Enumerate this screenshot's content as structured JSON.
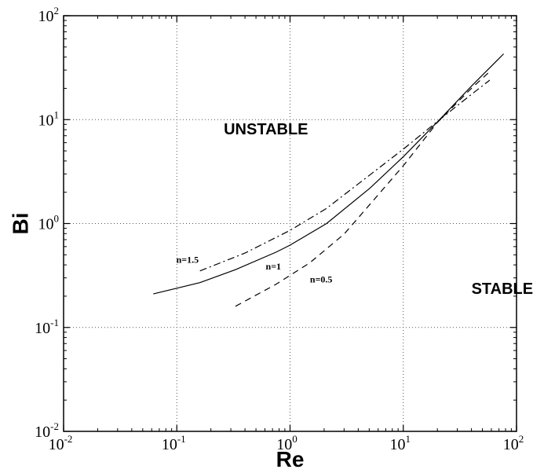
{
  "chart_data": {
    "type": "line",
    "xscale": "log",
    "yscale": "log",
    "xlim": [
      0.01,
      100
    ],
    "ylim": [
      0.01,
      100
    ],
    "grid": true,
    "xlabel": "Re",
    "ylabel": "Bi",
    "x_ticks": [
      {
        "base": "10",
        "exp": "-2",
        "value": 0.01
      },
      {
        "base": "10",
        "exp": "-1",
        "value": 0.1
      },
      {
        "base": "10",
        "exp": "0",
        "value": 1
      },
      {
        "base": "10",
        "exp": "1",
        "value": 10
      },
      {
        "base": "10",
        "exp": "2",
        "value": 100
      }
    ],
    "y_ticks": [
      {
        "base": "10",
        "exp": "-2",
        "value": 0.01
      },
      {
        "base": "10",
        "exp": "-1",
        "value": 0.1
      },
      {
        "base": "10",
        "exp": "0",
        "value": 1
      },
      {
        "base": "10",
        "exp": "1",
        "value": 10
      },
      {
        "base": "10",
        "exp": "2",
        "value": 100
      }
    ],
    "annotations": [
      {
        "text": "UNSTABLE",
        "x": 0.26,
        "y": 7.2
      },
      {
        "text": "STABLE",
        "x": 40,
        "y": 0.21
      }
    ],
    "series": [
      {
        "name": "n=1",
        "style": "solid",
        "label_at": {
          "x": 0.61,
          "y": 0.36
        },
        "points": [
          [
            0.062,
            0.21
          ],
          [
            0.16,
            0.27
          ],
          [
            0.33,
            0.36
          ],
          [
            0.75,
            0.53
          ],
          [
            1.0,
            0.62
          ],
          [
            2.1,
            1.0
          ],
          [
            5.1,
            2.2
          ],
          [
            10,
            4.4
          ],
          [
            20,
            9.5
          ],
          [
            40,
            21
          ],
          [
            77,
            43
          ]
        ]
      },
      {
        "name": "n=1.5",
        "style": "dashdot",
        "label_at": {
          "x": 0.099,
          "y": 0.42
        },
        "points": [
          [
            0.16,
            0.35
          ],
          [
            0.4,
            0.52
          ],
          [
            1.0,
            0.86
          ],
          [
            2.1,
            1.4
          ],
          [
            5.0,
            2.9
          ],
          [
            10,
            5.2
          ],
          [
            20,
            9.6
          ],
          [
            40,
            17.5
          ],
          [
            58,
            24
          ]
        ]
      },
      {
        "name": "n=0.5",
        "style": "dashed",
        "label_at": {
          "x": 1.5,
          "y": 0.27
        },
        "points": [
          [
            0.33,
            0.16
          ],
          [
            0.75,
            0.26
          ],
          [
            1.5,
            0.42
          ],
          [
            3.0,
            0.79
          ],
          [
            5.0,
            1.5
          ],
          [
            10,
            3.6
          ],
          [
            20,
            9.4
          ],
          [
            40,
            20
          ],
          [
            60,
            30
          ]
        ]
      }
    ]
  }
}
